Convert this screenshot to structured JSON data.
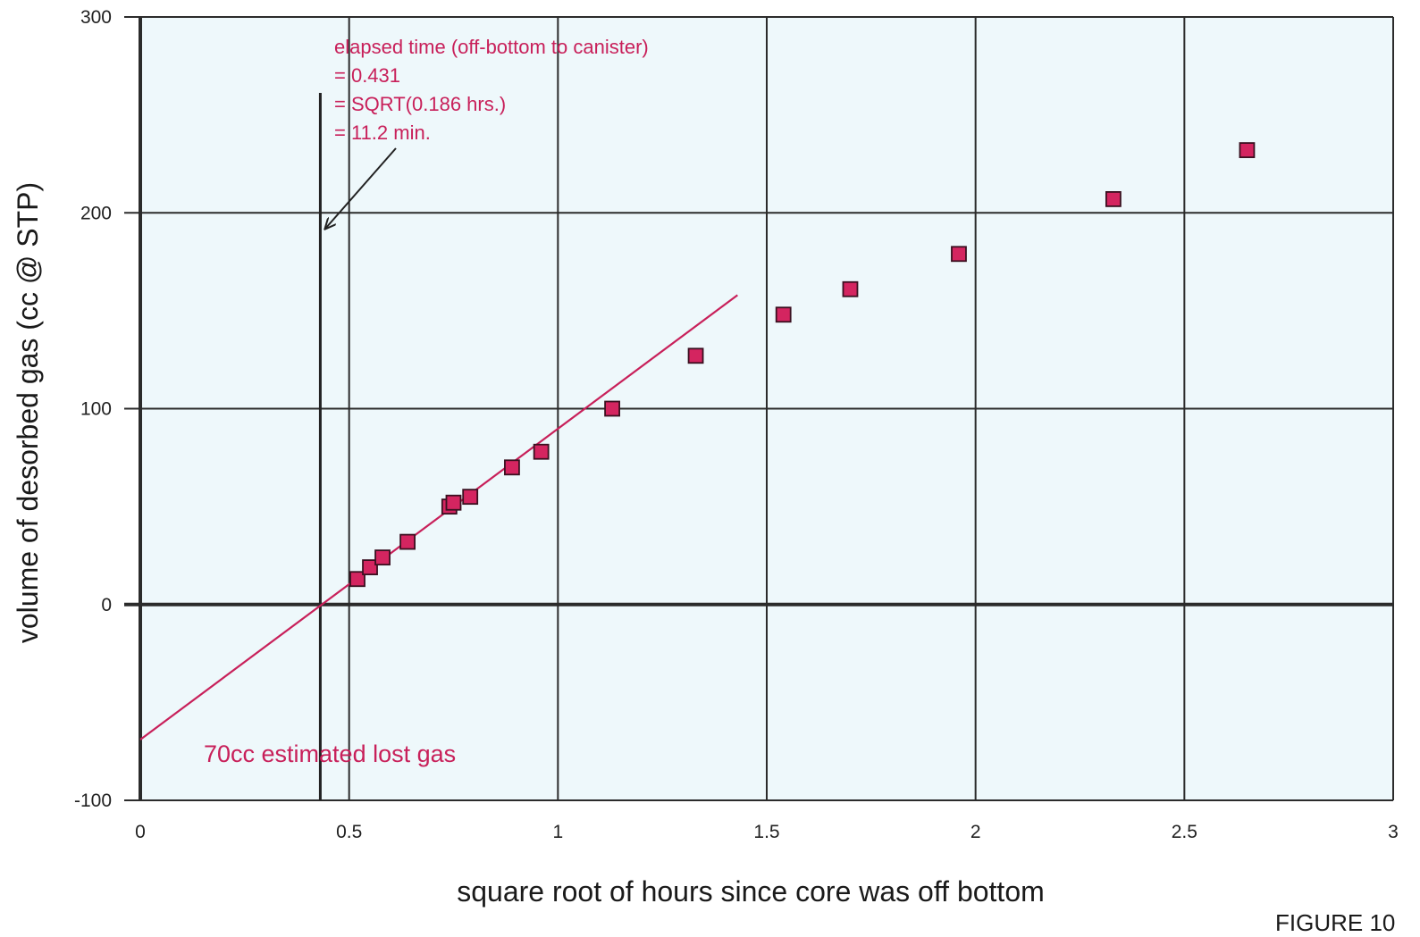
{
  "figure_label": "FIGURE 10",
  "chart_data": {
    "type": "scatter",
    "xlabel": "square root of hours since core was off bottom",
    "ylabel": "volume of desorbed gas (cc @ STP)",
    "xlim": [
      0,
      3
    ],
    "ylim": [
      -100,
      300
    ],
    "x_ticks": [
      0,
      0.5,
      1,
      1.5,
      2,
      2.5,
      3
    ],
    "x_tick_labels": [
      "0",
      "0.5",
      "1",
      "1.5",
      "2",
      "2.5",
      "3"
    ],
    "y_ticks": [
      -100,
      0,
      100,
      200,
      300
    ],
    "y_tick_labels": [
      "-100",
      "0",
      "100",
      "200",
      "300"
    ],
    "grid": true,
    "marker_color": "#d42560",
    "line_color": "#c8205a",
    "points": [
      {
        "x": 0.52,
        "y": 13
      },
      {
        "x": 0.55,
        "y": 19
      },
      {
        "x": 0.58,
        "y": 24
      },
      {
        "x": 0.64,
        "y": 32
      },
      {
        "x": 0.74,
        "y": 50
      },
      {
        "x": 0.75,
        "y": 52
      },
      {
        "x": 0.79,
        "y": 55
      },
      {
        "x": 0.89,
        "y": 70
      },
      {
        "x": 0.96,
        "y": 78
      },
      {
        "x": 1.13,
        "y": 100
      },
      {
        "x": 1.33,
        "y": 127
      },
      {
        "x": 1.54,
        "y": 148
      },
      {
        "x": 1.7,
        "y": 161
      },
      {
        "x": 1.96,
        "y": 179
      },
      {
        "x": 2.33,
        "y": 207
      },
      {
        "x": 2.65,
        "y": 232
      }
    ],
    "fit_line": {
      "x": [
        0,
        1.43
      ],
      "y": [
        -69,
        158
      ]
    },
    "marker_line_x": 0.431,
    "annotations": {
      "elapsed": [
        "elapsed time (off-bottom to canister)",
        "= 0.431",
        "= SQRT(0.186 hrs.)",
        "= 11.2 min."
      ],
      "lost_gas": "70cc estimated lost gas"
    }
  }
}
